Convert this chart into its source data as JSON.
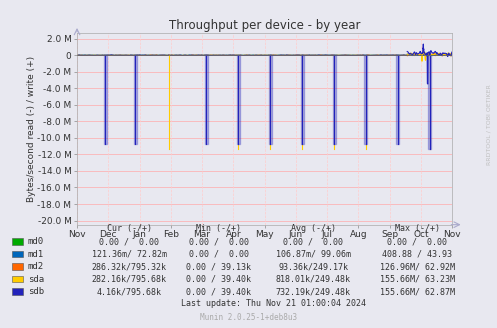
{
  "title": "Throughput per device - by year",
  "ylabel": "Bytes/second read (-) / write (+)",
  "background_color": "#e8e8f0",
  "plot_bg_color": "#e8e8f0",
  "grid_color_h": "#ffaaaa",
  "grid_color_v": "#ffcccc",
  "ylim": [
    -20500000,
    2700000
  ],
  "yticks": [
    -20000000,
    -18000000,
    -16000000,
    -14000000,
    -12000000,
    -10000000,
    -8000000,
    -6000000,
    -4000000,
    -2000000,
    0,
    2000000
  ],
  "ytick_labels": [
    "-20.0 M",
    "-18.0 M",
    "-16.0 M",
    "-14.0 M",
    "-12.0 M",
    "-10.0 M",
    "-8.0 M",
    "-6.0 M",
    "-4.0 M",
    "-2.0 M",
    "0",
    "2.0 M"
  ],
  "xtick_labels": [
    "Nov",
    "Dec",
    "Jan",
    "Feb",
    "Mar",
    "Apr",
    "May",
    "Jun",
    "Jul",
    "Aug",
    "Sep",
    "Oct",
    "Nov"
  ],
  "watermark": "RRDTOOL / TOBI OETIKER",
  "footer": "Munin 2.0.25-1+deb8u3",
  "last_update": "Last update: Thu Nov 21 01:00:04 2024",
  "legend": [
    {
      "label": "md0",
      "color": "#00aa00"
    },
    {
      "label": "md1",
      "color": "#0066bb"
    },
    {
      "label": "md2",
      "color": "#ff6600"
    },
    {
      "label": "sda",
      "color": "#ffcc00"
    },
    {
      "label": "sdb",
      "color": "#2222bb"
    }
  ],
  "legend_cols": [
    "Cur (-/+)",
    "Min (-/+)",
    "Avg (-/+)",
    "Max (-/+)"
  ],
  "legend_data": [
    [
      "0.00 /  0.00",
      "0.00 /  0.00",
      "0.00 /  0.00",
      "0.00 /  0.00"
    ],
    [
      "121.36m/ 72.82m",
      "0.00 /  0.00",
      "106.87m/ 99.06m",
      "408.88 / 43.93"
    ],
    [
      "286.32k/795.32k",
      "0.00 / 39.13k",
      "93.36k/249.17k",
      "126.96M/ 62.92M"
    ],
    [
      "282.16k/795.68k",
      "0.00 / 39.40k",
      "818.01k/249.48k",
      "155.66M/ 63.23M"
    ],
    [
      "4.16k/795.68k",
      "0.00 / 39.40k",
      "732.19k/249.48k",
      "155.66M/ 62.87M"
    ]
  ],
  "sdb_spikes_x": [
    0.075,
    0.155,
    0.345,
    0.43,
    0.515,
    0.6,
    0.685,
    0.77,
    0.855,
    0.94
  ],
  "sdb_spikes_y": [
    -10800000,
    -10800000,
    -10800000,
    -10800000,
    -10800000,
    -10800000,
    -10800000,
    -10800000,
    -10800000,
    -11400000
  ],
  "sda_spikes_x": [
    0.245,
    0.43,
    0.515,
    0.6,
    0.685,
    0.77,
    0.94
  ],
  "sda_spikes_y": [
    -11400000,
    -11400000,
    -11400000,
    -11400000,
    -11400000,
    -11400000,
    -11400000
  ]
}
